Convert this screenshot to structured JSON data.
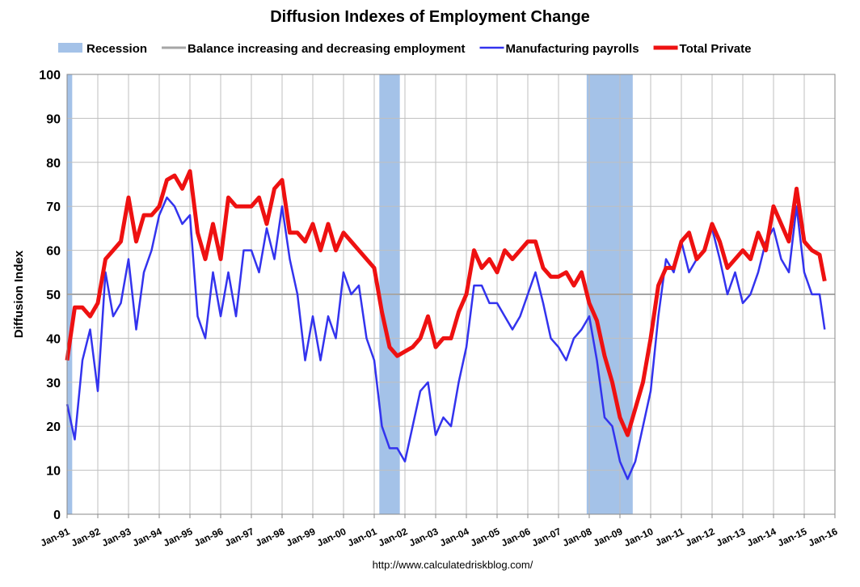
{
  "chart_data": {
    "type": "line",
    "title": "Diffusion Indexes of Employment Change",
    "ylabel": "Diffusion Index",
    "source": "http://www.calculatedriskblog.com/",
    "legend_position": "top",
    "grid": true,
    "ylim": [
      0,
      100
    ],
    "yticks": [
      0,
      10,
      20,
      30,
      40,
      50,
      60,
      70,
      80,
      90,
      100
    ],
    "xlim": [
      "1991-01",
      "2016-01"
    ],
    "xticks": [
      {
        "value": "1991-01",
        "label": "Jan-91"
      },
      {
        "value": "1992-01",
        "label": "Jan-92"
      },
      {
        "value": "1993-01",
        "label": "Jan-93"
      },
      {
        "value": "1994-01",
        "label": "Jan-94"
      },
      {
        "value": "1995-01",
        "label": "Jan-95"
      },
      {
        "value": "1996-01",
        "label": "Jan-96"
      },
      {
        "value": "1997-01",
        "label": "Jan-97"
      },
      {
        "value": "1998-01",
        "label": "Jan-98"
      },
      {
        "value": "1999-01",
        "label": "Jan-99"
      },
      {
        "value": "2000-01",
        "label": "Jan-00"
      },
      {
        "value": "2001-01",
        "label": "Jan-01"
      },
      {
        "value": "2002-01",
        "label": "Jan-02"
      },
      {
        "value": "2003-01",
        "label": "Jan-03"
      },
      {
        "value": "2004-01",
        "label": "Jan-04"
      },
      {
        "value": "2005-01",
        "label": "Jan-05"
      },
      {
        "value": "2006-01",
        "label": "Jan-06"
      },
      {
        "value": "2007-01",
        "label": "Jan-07"
      },
      {
        "value": "2008-01",
        "label": "Jan-08"
      },
      {
        "value": "2009-01",
        "label": "Jan-09"
      },
      {
        "value": "2010-01",
        "label": "Jan-10"
      },
      {
        "value": "2011-01",
        "label": "Jan-11"
      },
      {
        "value": "2012-01",
        "label": "Jan-12"
      },
      {
        "value": "2013-01",
        "label": "Jan-13"
      },
      {
        "value": "2014-01",
        "label": "Jan-14"
      },
      {
        "value": "2015-01",
        "label": "Jan-15"
      },
      {
        "value": "2016-01",
        "label": "Jan-16"
      }
    ],
    "recession": {
      "name": "Recession",
      "color": "#a4c2e8",
      "spans": [
        [
          "1991-01",
          "1991-03"
        ],
        [
          "2001-03",
          "2001-11"
        ],
        [
          "2007-12",
          "2009-06"
        ]
      ]
    },
    "balance": {
      "name": "Balance increasing and decreasing employment",
      "color": "#a6a6a6",
      "value": 50
    },
    "x": [
      "1991-01",
      "1991-04",
      "1991-07",
      "1991-10",
      "1992-01",
      "1992-04",
      "1992-07",
      "1992-10",
      "1993-01",
      "1993-04",
      "1993-07",
      "1993-10",
      "1994-01",
      "1994-04",
      "1994-07",
      "1994-10",
      "1995-01",
      "1995-04",
      "1995-07",
      "1995-10",
      "1996-01",
      "1996-04",
      "1996-07",
      "1996-10",
      "1997-01",
      "1997-04",
      "1997-07",
      "1997-10",
      "1998-01",
      "1998-04",
      "1998-07",
      "1998-10",
      "1999-01",
      "1999-04",
      "1999-07",
      "1999-10",
      "2000-01",
      "2000-04",
      "2000-07",
      "2000-10",
      "2001-01",
      "2001-04",
      "2001-07",
      "2001-10",
      "2002-01",
      "2002-04",
      "2002-07",
      "2002-10",
      "2003-01",
      "2003-04",
      "2003-07",
      "2003-10",
      "2004-01",
      "2004-04",
      "2004-07",
      "2004-10",
      "2005-01",
      "2005-04",
      "2005-07",
      "2005-10",
      "2006-01",
      "2006-04",
      "2006-07",
      "2006-10",
      "2007-01",
      "2007-04",
      "2007-07",
      "2007-10",
      "2008-01",
      "2008-04",
      "2008-07",
      "2008-10",
      "2009-01",
      "2009-04",
      "2009-07",
      "2009-10",
      "2010-01",
      "2010-04",
      "2010-07",
      "2010-10",
      "2011-01",
      "2011-04",
      "2011-07",
      "2011-10",
      "2012-01",
      "2012-04",
      "2012-07",
      "2012-10",
      "2013-01",
      "2013-04",
      "2013-07",
      "2013-10",
      "2014-01",
      "2014-04",
      "2014-07",
      "2014-10",
      "2015-01",
      "2015-04",
      "2015-07",
      "2015-09"
    ],
    "series": [
      {
        "name": "Manufacturing payrolls",
        "color": "#3333ee",
        "width": 2.5,
        "values": [
          25,
          17,
          35,
          42,
          28,
          55,
          45,
          48,
          58,
          42,
          55,
          60,
          68,
          72,
          70,
          66,
          68,
          45,
          40,
          55,
          45,
          55,
          45,
          60,
          60,
          55,
          65,
          58,
          70,
          58,
          50,
          35,
          45,
          35,
          45,
          40,
          55,
          50,
          52,
          40,
          35,
          20,
          15,
          15,
          12,
          20,
          28,
          30,
          18,
          22,
          20,
          30,
          38,
          52,
          52,
          48,
          48,
          45,
          42,
          45,
          50,
          55,
          48,
          40,
          38,
          35,
          40,
          42,
          45,
          35,
          22,
          20,
          12,
          8,
          12,
          20,
          28,
          45,
          58,
          55,
          62,
          55,
          58,
          60,
          65,
          58,
          50,
          55,
          48,
          50,
          55,
          62,
          65,
          58,
          55,
          70,
          55,
          50,
          50,
          42
        ]
      },
      {
        "name": "Total Private",
        "color": "#ee1111",
        "width": 5,
        "values": [
          35,
          47,
          47,
          45,
          48,
          58,
          60,
          62,
          72,
          62,
          68,
          68,
          70,
          76,
          77,
          74,
          78,
          64,
          58,
          66,
          58,
          72,
          70,
          70,
          70,
          72,
          66,
          74,
          76,
          64,
          64,
          62,
          66,
          60,
          66,
          60,
          64,
          62,
          60,
          58,
          56,
          46,
          38,
          36,
          37,
          38,
          40,
          45,
          38,
          40,
          40,
          46,
          50,
          60,
          56,
          58,
          55,
          60,
          58,
          60,
          62,
          62,
          56,
          54,
          54,
          55,
          52,
          55,
          48,
          44,
          36,
          30,
          22,
          18,
          24,
          30,
          40,
          52,
          56,
          56,
          62,
          64,
          58,
          60,
          66,
          62,
          56,
          58,
          60,
          58,
          64,
          60,
          70,
          66,
          62,
          74,
          62,
          60,
          59,
          53
        ]
      }
    ]
  }
}
